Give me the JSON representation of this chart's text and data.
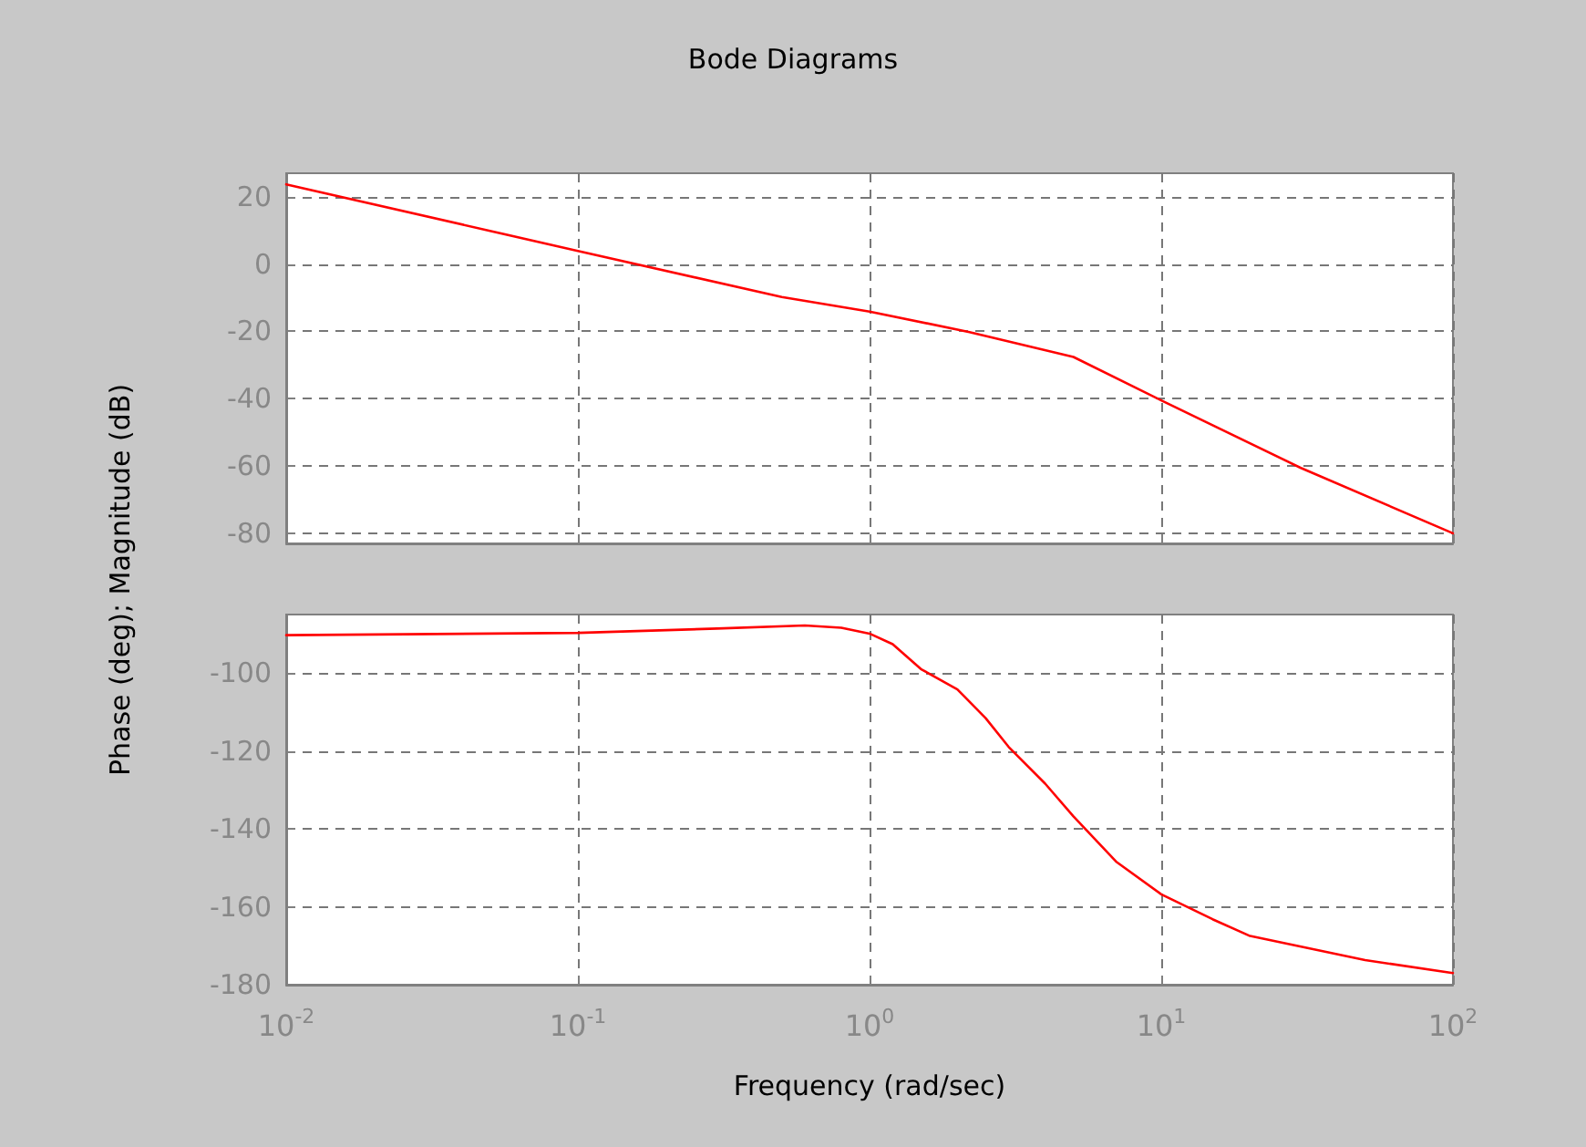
{
  "chart_data": [
    {
      "type": "line",
      "title": "Bode Diagrams",
      "ylabel": "Phase (deg); Magnitude (dB)",
      "x": [
        0.01,
        0.1,
        0.5,
        1,
        2.2,
        5,
        10,
        30,
        100
      ],
      "series": [
        {
          "color": "#ff0000",
          "values": [
            23.7,
            3.9,
            -9.8,
            -14.1,
            -20.2,
            -27.6,
            -40.5,
            -60.5,
            -80
          ]
        }
      ],
      "xlim": [
        0.01,
        100
      ],
      "xticks": [
        {
          "value": 0.01,
          "label": null
        },
        {
          "value": 0.1,
          "label": null
        },
        {
          "value": 1,
          "label": null
        },
        {
          "value": 10,
          "label": null
        },
        {
          "value": 100,
          "label": null
        }
      ],
      "ylim": [
        -83,
        27
      ],
      "yticks": [
        -80,
        -60,
        -40,
        -20,
        0,
        20
      ],
      "log": "x",
      "grid": true,
      "marker": "none",
      "line_style": "solid",
      "tick_labels": "y"
    },
    {
      "type": "line",
      "xlabel": "Frequency (rad/sec)",
      "x": [
        0.01,
        0.1,
        0.3,
        0.6,
        0.8,
        1,
        1.2,
        1.5,
        2,
        2.5,
        3,
        4,
        5,
        7,
        10,
        15,
        20,
        50,
        100
      ],
      "series": [
        {
          "color": "#ff0000",
          "values": [
            -90.3,
            -89.7,
            -88.6,
            -87.8,
            -88.4,
            -89.9,
            -92.6,
            -99,
            -104.2,
            -111.6,
            -119,
            -128.4,
            -136.8,
            -148.4,
            -156.8,
            -163.2,
            -167.4,
            -173.7,
            -177
          ]
        }
      ],
      "xlim": [
        0.01,
        100
      ],
      "xticks": [
        {
          "value": 0.01,
          "label": "10$^{-2}$"
        },
        {
          "value": 0.1,
          "label": "10$^{-1}$"
        },
        {
          "value": 1,
          "label": "10$^{0}$"
        },
        {
          "value": 10,
          "label": "10$^{1}$"
        },
        {
          "value": 100,
          "label": "10$^{2}$"
        }
      ],
      "ylim": [
        -180,
        -85
      ],
      "yticks": [
        -180,
        -160,
        -140,
        -120,
        -100
      ],
      "log": "x",
      "grid": true,
      "marker": "none",
      "line_style": "solid"
    }
  ]
}
